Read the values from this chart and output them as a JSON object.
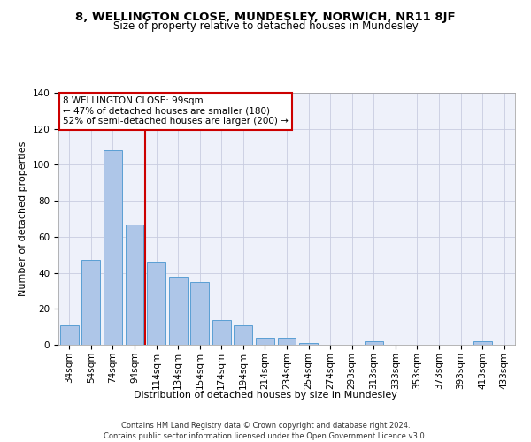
{
  "title": "8, WELLINGTON CLOSE, MUNDESLEY, NORWICH, NR11 8JF",
  "subtitle": "Size of property relative to detached houses in Mundesley",
  "xlabel": "Distribution of detached houses by size in Mundesley",
  "ylabel": "Number of detached properties",
  "categories": [
    "34sqm",
    "54sqm",
    "74sqm",
    "94sqm",
    "114sqm",
    "134sqm",
    "154sqm",
    "174sqm",
    "194sqm",
    "214sqm",
    "234sqm",
    "254sqm",
    "274sqm",
    "293sqm",
    "313sqm",
    "333sqm",
    "353sqm",
    "373sqm",
    "393sqm",
    "413sqm",
    "433sqm"
  ],
  "values": [
    11,
    47,
    108,
    67,
    46,
    38,
    35,
    14,
    11,
    4,
    4,
    1,
    0,
    0,
    2,
    0,
    0,
    0,
    0,
    2,
    0
  ],
  "bar_color": "#aec6e8",
  "bar_edge_color": "#5a9fd4",
  "vline_x": 3.5,
  "vline_color": "#cc0000",
  "annotation_line1": "8 WELLINGTON CLOSE: 99sqm",
  "annotation_line2": "← 47% of detached houses are smaller (180)",
  "annotation_line3": "52% of semi-detached houses are larger (200) →",
  "annotation_box_color": "#ffffff",
  "annotation_box_edge": "#cc0000",
  "ylim": [
    0,
    140
  ],
  "footer_line1": "Contains HM Land Registry data © Crown copyright and database right 2024.",
  "footer_line2": "Contains public sector information licensed under the Open Government Licence v3.0.",
  "bg_color": "#eef1fa",
  "title_fontsize": 9.5,
  "subtitle_fontsize": 8.5,
  "tick_fontsize": 7.5,
  "ylabel_fontsize": 8,
  "xlabel_fontsize": 8,
  "annotation_fontsize": 7.5,
  "footer_fontsize": 6
}
